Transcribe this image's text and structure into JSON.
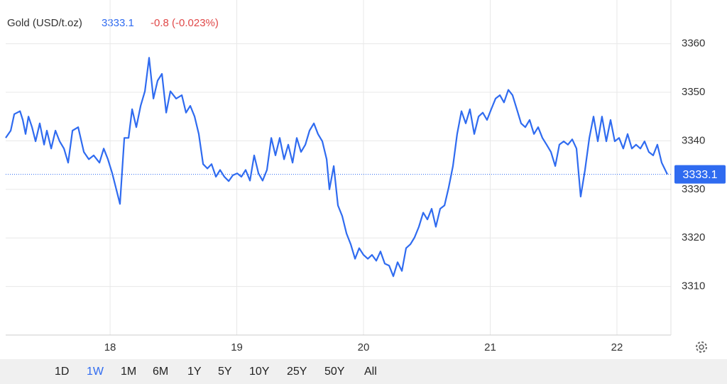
{
  "header": {
    "title": "Gold (USD/t.oz)",
    "change": "-0.8 (-0.023%)"
  },
  "range_buttons": [
    "1D",
    "1W",
    "1M",
    "6M",
    "1Y",
    "5Y",
    "10Y",
    "25Y",
    "50Y",
    "All"
  ],
  "active_range": "1W",
  "chart_data": {
    "type": "line",
    "color": "#2f6bf0",
    "grid": true,
    "last_value": 3333.1,
    "xlim": [
      17.176,
      22.426
    ],
    "xticks": [
      18,
      19,
      20,
      21,
      22
    ],
    "ylim": [
      3300,
      3369
    ],
    "yticks": [
      3310,
      3320,
      3330,
      3340,
      3350,
      3360
    ],
    "x": [
      17.176,
      17.216,
      17.244,
      17.289,
      17.311,
      17.333,
      17.356,
      17.384,
      17.412,
      17.445,
      17.479,
      17.501,
      17.535,
      17.569,
      17.602,
      17.636,
      17.669,
      17.703,
      17.748,
      17.793,
      17.832,
      17.871,
      17.916,
      17.95,
      17.983,
      18.017,
      18.045,
      18.078,
      18.112,
      18.146,
      18.174,
      18.207,
      18.241,
      18.275,
      18.308,
      18.342,
      18.375,
      18.409,
      18.443,
      18.476,
      18.521,
      18.566,
      18.599,
      18.633,
      18.667,
      18.7,
      18.734,
      18.768,
      18.801,
      18.835,
      18.868,
      18.902,
      18.936,
      18.969,
      19.003,
      19.036,
      19.07,
      19.104,
      19.137,
      19.171,
      19.204,
      19.238,
      19.272,
      19.305,
      19.339,
      19.373,
      19.406,
      19.44,
      19.473,
      19.507,
      19.541,
      19.574,
      19.608,
      19.641,
      19.675,
      19.709,
      19.731,
      19.765,
      19.798,
      19.832,
      19.866,
      19.899,
      19.933,
      19.966,
      20.0,
      20.034,
      20.067,
      20.101,
      20.134,
      20.168,
      20.202,
      20.235,
      20.269,
      20.303,
      20.336,
      20.37,
      20.403,
      20.437,
      20.471,
      20.504,
      20.538,
      20.571,
      20.605,
      20.639,
      20.672,
      20.706,
      20.739,
      20.773,
      20.807,
      20.84,
      20.874,
      20.908,
      20.941,
      20.975,
      21.008,
      21.042,
      21.076,
      21.109,
      21.143,
      21.176,
      21.21,
      21.244,
      21.277,
      21.311,
      21.345,
      21.378,
      21.412,
      21.445,
      21.479,
      21.513,
      21.546,
      21.58,
      21.613,
      21.647,
      21.681,
      21.714,
      21.748,
      21.782,
      21.815,
      21.849,
      21.882,
      21.916,
      21.95,
      21.983,
      22.017,
      22.05,
      22.084,
      22.118,
      22.151,
      22.185,
      22.218,
      22.252,
      22.286,
      22.319,
      22.353,
      22.398
    ],
    "values": [
      3340.6,
      3342.1,
      3345.5,
      3346.1,
      3344.3,
      3341.4,
      3345.0,
      3342.8,
      3339.9,
      3343.6,
      3339.2,
      3342.1,
      3338.4,
      3342.1,
      3339.9,
      3338.4,
      3335.5,
      3342.1,
      3342.8,
      3337.7,
      3336.2,
      3337.0,
      3335.5,
      3338.4,
      3336.2,
      3333.3,
      3330.4,
      3327.0,
      3340.6,
      3340.6,
      3346.5,
      3342.8,
      3347.2,
      3350.2,
      3357.1,
      3348.7,
      3352.4,
      3353.8,
      3345.8,
      3350.2,
      3348.7,
      3349.4,
      3345.8,
      3347.2,
      3345.0,
      3341.4,
      3335.2,
      3334.3,
      3335.2,
      3332.6,
      3334.0,
      3332.6,
      3331.7,
      3332.9,
      3333.3,
      3332.6,
      3334.0,
      3331.8,
      3337.0,
      3333.3,
      3331.8,
      3334.0,
      3340.6,
      3337.0,
      3340.6,
      3336.2,
      3339.2,
      3335.5,
      3340.6,
      3337.7,
      3339.2,
      3342.1,
      3343.6,
      3341.4,
      3339.9,
      3336.2,
      3330.0,
      3334.8,
      3326.7,
      3324.5,
      3320.9,
      3318.7,
      3315.7,
      3317.9,
      3316.5,
      3315.7,
      3316.5,
      3315.3,
      3317.2,
      3314.7,
      3314.3,
      3312.1,
      3315.0,
      3313.2,
      3317.9,
      3318.7,
      3320.1,
      3322.3,
      3325.2,
      3323.8,
      3326.0,
      3322.3,
      3326.0,
      3326.7,
      3330.4,
      3334.8,
      3341.4,
      3346.1,
      3343.6,
      3346.5,
      3341.4,
      3345.0,
      3345.8,
      3344.3,
      3346.5,
      3348.7,
      3349.4,
      3347.9,
      3350.5,
      3349.4,
      3346.5,
      3343.6,
      3342.8,
      3344.3,
      3341.4,
      3342.8,
      3340.6,
      3339.2,
      3337.7,
      3334.8,
      3339.2,
      3339.9,
      3339.2,
      3340.3,
      3338.4,
      3328.5,
      3334.0,
      3340.6,
      3345.0,
      3339.9,
      3345.0,
      3339.9,
      3344.3,
      3339.9,
      3340.6,
      3338.4,
      3341.4,
      3338.4,
      3339.2,
      3338.4,
      3339.9,
      3337.7,
      3337.0,
      3339.2,
      3335.5,
      3333.1
    ]
  }
}
